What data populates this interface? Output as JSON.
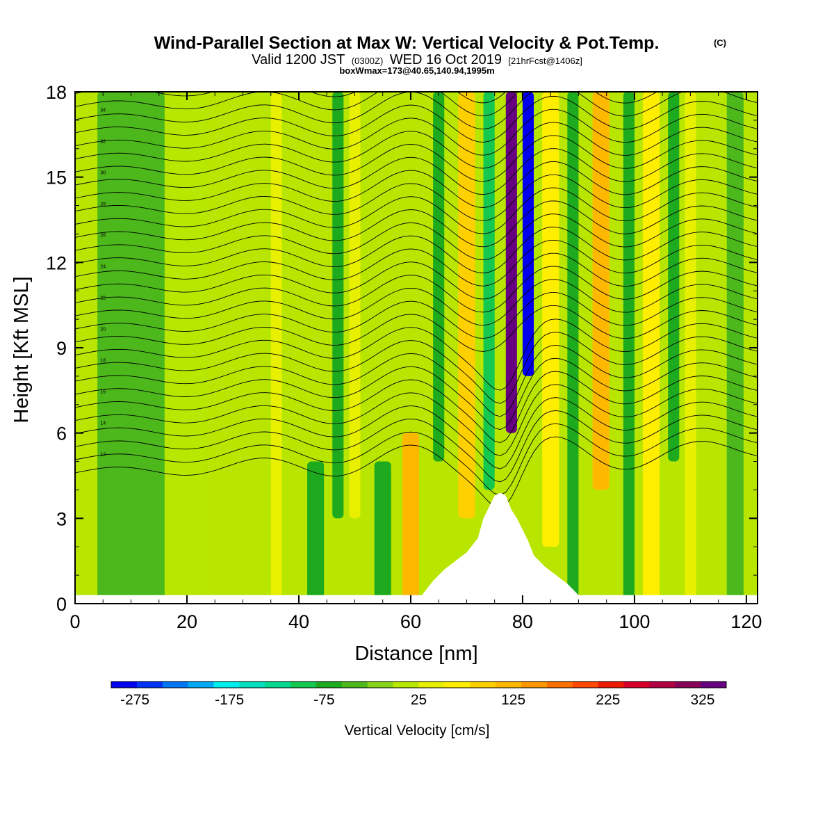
{
  "chart_data": {
    "type": "heatmap",
    "title": "Wind-Parallel Section at Max W: Vertical Velocity & Pot.Temp.",
    "title_suffix": "(C)",
    "subtitle_main": "Valid 1200 JST",
    "subtitle_utc": "(0300Z)",
    "subtitle_date": "WED 16 Oct 2019",
    "subtitle_fcst": "[21hrFcst@1406z]",
    "subtitle2": "boxWmax=173@40.65,140.94,1995m",
    "xlabel": "Distance [nm]",
    "ylabel": "Height [Kft MSL]",
    "xlim": [
      0,
      122
    ],
    "ylim": [
      0,
      18
    ],
    "x_ticks": [
      0,
      20,
      40,
      60,
      80,
      100,
      120
    ],
    "x_tick_labels": [
      "0",
      "20",
      "40",
      "60",
      "80",
      "100",
      "120"
    ],
    "y_ticks": [
      0,
      3,
      6,
      9,
      12,
      15,
      18
    ],
    "y_tick_labels": [
      "0",
      "3",
      "6",
      "9",
      "12",
      "15",
      "18"
    ],
    "colorbar": {
      "label": "Vertical Velocity [cm/s]",
      "range": [
        -300,
        350
      ],
      "tick_values": [
        -275,
        -175,
        -75,
        25,
        125,
        225,
        325
      ],
      "tick_labels": [
        "-275",
        "-175",
        "-75",
        "25",
        "125",
        "225",
        "325"
      ],
      "colors": [
        "#0000ee",
        "#0033f5",
        "#0077f5",
        "#00aaf5",
        "#00eeee",
        "#00e0c0",
        "#00d890",
        "#14c850",
        "#1eaa1e",
        "#4cb81c",
        "#88d418",
        "#b8e800",
        "#e8f000",
        "#ffee00",
        "#ffd000",
        "#ffb800",
        "#ff9800",
        "#ff7000",
        "#ff4800",
        "#ee1a00",
        "#d80028",
        "#b00040",
        "#880055",
        "#660080"
      ]
    },
    "theta_contour_labels": [
      "34",
      "32",
      "30",
      "28",
      "26",
      "24",
      "22",
      "20",
      "18",
      "16",
      "14",
      "12"
    ],
    "velocity_bands": [
      {
        "x": 10,
        "z_bottom": 0,
        "z_top": 18,
        "w": -30,
        "width_nm": 12
      },
      {
        "x": 20,
        "z_bottom": 0,
        "z_top": 18,
        "w": 20,
        "width_nm": 6
      },
      {
        "x": 36,
        "z_bottom": 0,
        "z_top": 18,
        "w": 45,
        "width_nm": 2
      },
      {
        "x": 43,
        "z_bottom": 0,
        "z_top": 5,
        "w": -70,
        "width_nm": 3
      },
      {
        "x": 47,
        "z_bottom": 3,
        "z_top": 18,
        "w": -60,
        "width_nm": 2
      },
      {
        "x": 50,
        "z_bottom": 3,
        "z_top": 18,
        "w": 40,
        "width_nm": 2
      },
      {
        "x": 55,
        "z_bottom": 0,
        "z_top": 5,
        "w": -80,
        "width_nm": 3
      },
      {
        "x": 60,
        "z_bottom": 0,
        "z_top": 6,
        "w": 110,
        "width_nm": 3
      },
      {
        "x": 65,
        "z_bottom": 5,
        "z_top": 18,
        "w": -60,
        "width_nm": 2
      },
      {
        "x": 70,
        "z_bottom": 3,
        "z_top": 18,
        "w": 80,
        "width_nm": 3
      },
      {
        "x": 74,
        "z_bottom": 4,
        "z_top": 18,
        "w": -100,
        "width_nm": 2
      },
      {
        "x": 78,
        "z_bottom": 6,
        "z_top": 18,
        "w": 330,
        "width_nm": 2
      },
      {
        "x": 81,
        "z_bottom": 8,
        "z_top": 18,
        "w": -280,
        "width_nm": 2
      },
      {
        "x": 85,
        "z_bottom": 2,
        "z_top": 18,
        "w": 60,
        "width_nm": 3
      },
      {
        "x": 89,
        "z_bottom": 0,
        "z_top": 18,
        "w": -80,
        "width_nm": 2
      },
      {
        "x": 94,
        "z_bottom": 4,
        "z_top": 18,
        "w": 120,
        "width_nm": 3
      },
      {
        "x": 99,
        "z_bottom": 0,
        "z_top": 18,
        "w": -60,
        "width_nm": 2
      },
      {
        "x": 103,
        "z_bottom": 0,
        "z_top": 18,
        "w": 60,
        "width_nm": 3
      },
      {
        "x": 107,
        "z_bottom": 5,
        "z_top": 18,
        "w": -70,
        "width_nm": 2
      },
      {
        "x": 110,
        "z_bottom": 0,
        "z_top": 18,
        "w": 50,
        "width_nm": 2
      },
      {
        "x": 118,
        "z_bottom": 0,
        "z_top": 18,
        "w": -40,
        "width_nm": 3
      }
    ],
    "terrain": [
      [
        0,
        0.3
      ],
      [
        62,
        0.3
      ],
      [
        64,
        0.8
      ],
      [
        66,
        1.2
      ],
      [
        68,
        1.5
      ],
      [
        70,
        1.8
      ],
      [
        72,
        2.3
      ],
      [
        73,
        3.0
      ],
      [
        74,
        3.4
      ],
      [
        75,
        3.8
      ],
      [
        76,
        3.9
      ],
      [
        77,
        3.8
      ],
      [
        78,
        3.3
      ],
      [
        79,
        3.0
      ],
      [
        80,
        2.6
      ],
      [
        81,
        2.2
      ],
      [
        82,
        1.7
      ],
      [
        84,
        1.3
      ],
      [
        86,
        1.0
      ],
      [
        88,
        0.7
      ],
      [
        90,
        0.3
      ],
      [
        122,
        0.3
      ]
    ]
  }
}
